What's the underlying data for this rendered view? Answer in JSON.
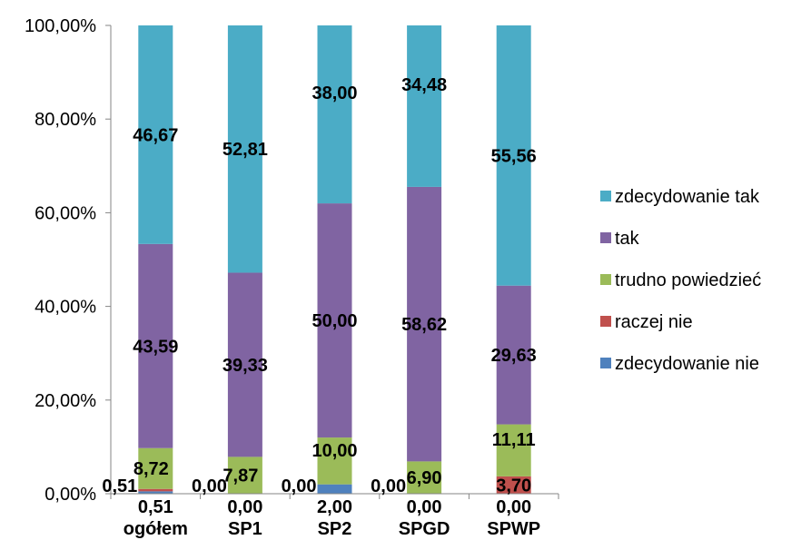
{
  "chart_data": {
    "type": "bar",
    "stacked": true,
    "percent_stacked": true,
    "categories": [
      "ogółem",
      "SP1",
      "SP2",
      "SPGD",
      "SPWP"
    ],
    "series": [
      {
        "name": "zdecydowanie nie",
        "color": "#4F81BD",
        "values": [
          0.51,
          0.0,
          2.0,
          0.0,
          0.0
        ],
        "labels": [
          "0,51",
          "0,00",
          "2,00",
          "0,00",
          "0,00"
        ]
      },
      {
        "name": "raczej nie",
        "color": "#C0504D",
        "values": [
          0.51,
          0.0,
          0.0,
          0.0,
          3.7
        ],
        "labels": [
          "0,51",
          "0,00",
          "0,00",
          "0,00",
          "3,70"
        ]
      },
      {
        "name": "trudno powiedzieć",
        "color": "#9BBB59",
        "values": [
          8.72,
          7.87,
          10.0,
          6.9,
          11.11
        ],
        "labels": [
          "8,72",
          "7,87",
          "10,00",
          "6,90",
          "11,11"
        ]
      },
      {
        "name": "tak",
        "color": "#8064A2",
        "values": [
          43.59,
          39.33,
          50.0,
          58.62,
          29.63
        ],
        "labels": [
          "43,59",
          "39,33",
          "50,00",
          "58,62",
          "29,63"
        ]
      },
      {
        "name": "zdecydowanie tak",
        "color": "#4BACC6",
        "values": [
          46.67,
          52.81,
          38.0,
          34.48,
          55.56
        ],
        "labels": [
          "46,67",
          "52,81",
          "38,00",
          "34,48",
          "55,56"
        ]
      }
    ],
    "y_ticks": [
      "0,00%",
      "20,00%",
      "40,00%",
      "60,00%",
      "80,00%",
      "100,00%"
    ],
    "ylim": [
      0,
      100
    ],
    "legend_position": "right",
    "grid": false
  }
}
